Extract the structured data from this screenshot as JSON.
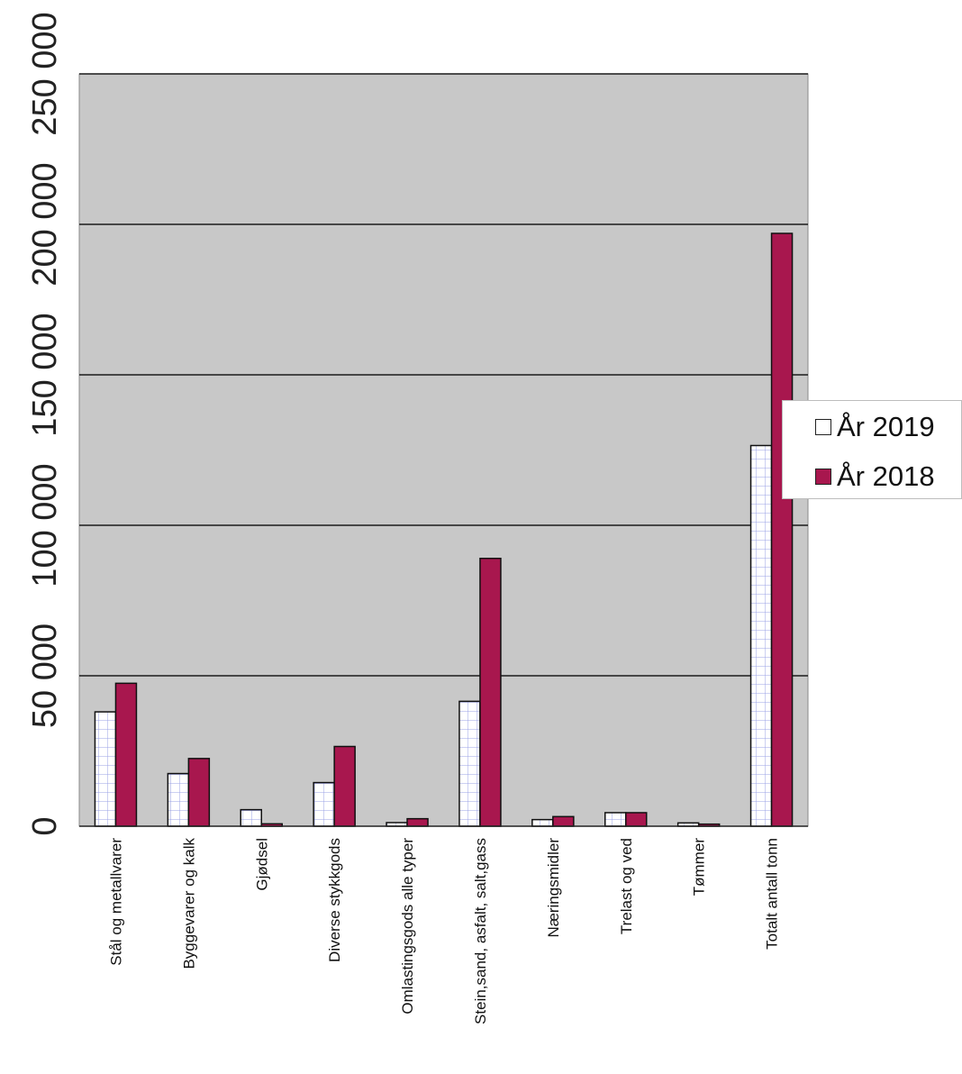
{
  "chart_data": {
    "type": "bar",
    "categories": [
      "Stål og metallvarer",
      "Byggevarer og kalk",
      "Gjødsel",
      "Diverse stykkgods",
      "Omlastingsgods alle typer",
      "Stein,sand, asfalt, salt,gass",
      "Næringsmidler",
      "Trelast og ved",
      "Tømmer",
      "Totalt antall tonn"
    ],
    "series": [
      {
        "name": "År 2019",
        "values": [
          38000,
          17500,
          5500,
          14500,
          1200,
          41500,
          2200,
          4500,
          1100,
          126500
        ]
      },
      {
        "name": "År 2018",
        "values": [
          47500,
          22500,
          800,
          26500,
          2500,
          89000,
          3200,
          4500,
          700,
          197000
        ]
      }
    ],
    "ylim": [
      0,
      250000
    ],
    "yticks": [
      0,
      50000,
      100000,
      150000,
      200000,
      250000
    ],
    "ytick_labels": [
      "0",
      "50 000",
      "100 000",
      "150 000",
      "200 000",
      "250 000"
    ],
    "grid": true,
    "legend_position": "right",
    "colors": {
      "plot_background": "#c8c8c8",
      "gridline": "#1a1a1a",
      "series_2019_fill": "#ffffff",
      "series_2019_pattern": "#9aa0e6",
      "series_2018_fill": "#a8174e",
      "bar_outline": "#111111"
    }
  }
}
